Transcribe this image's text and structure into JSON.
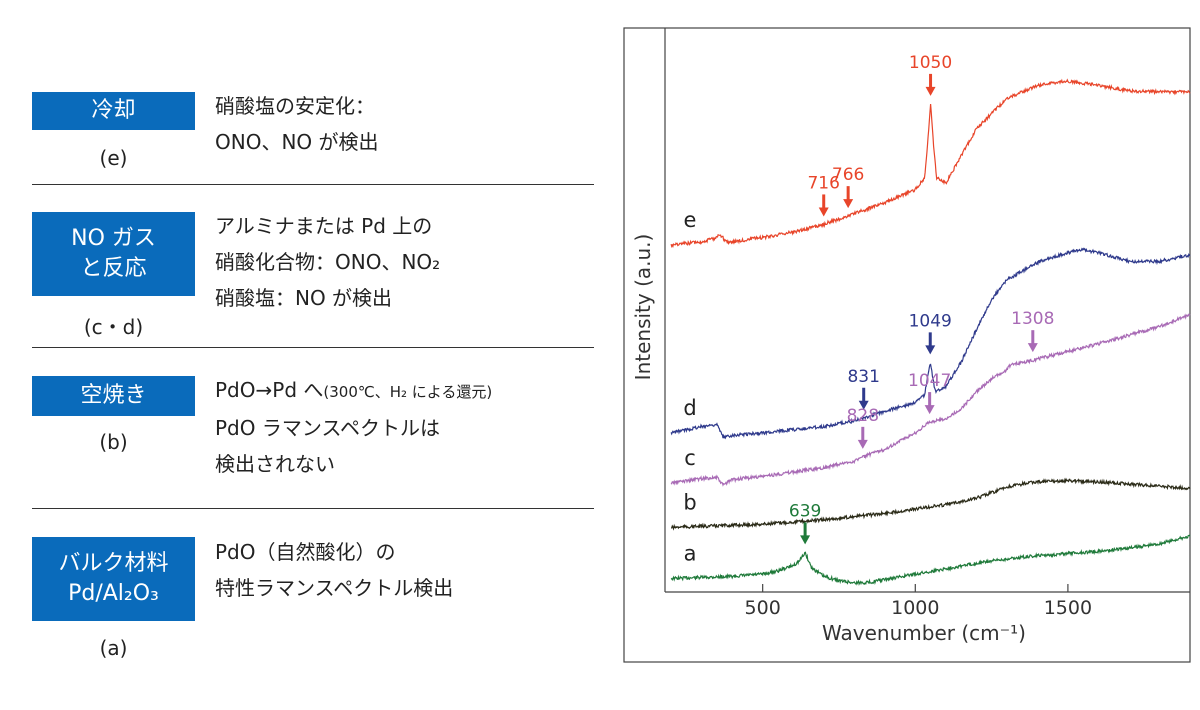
{
  "left_panel": {
    "rows": [
      {
        "badge": [
          "冷却"
        ],
        "sub": "(e)",
        "desc": [
          "硝酸塩の安定化：",
          "ONO、NO が検出"
        ]
      },
      {
        "badge": [
          "NO ガス",
          "と反応"
        ],
        "sub": "(c・d)",
        "desc": [
          "アルミナまたは Pd 上の",
          "硝酸化合物：ONO、NO₂",
          "硝酸塩：NO が検出"
        ]
      },
      {
        "badge": [
          "空焼き"
        ],
        "sub": "(b)",
        "desc_first": "PdO→Pd へ",
        "desc_first_small": "(300℃、H₂ による還元)",
        "desc": [
          "PdO ラマンスペクトルは",
          "検出されない"
        ]
      },
      {
        "badge": [
          "バルク材料",
          "Pd/Al₂O₃"
        ],
        "sub": "(a)",
        "desc": [
          "PdO（自然酸化）の",
          "特性ラマンスペクトル検出"
        ]
      }
    ]
  },
  "chart_data": {
    "type": "line",
    "xlabel": "Wavenumber (cm⁻¹)",
    "ylabel": "Intensity (a.u.)",
    "xlim": [
      180,
      1900
    ],
    "xticks": [
      500,
      1000,
      1500
    ],
    "yticks_shown": false,
    "grid": false,
    "series": [
      {
        "name": "a",
        "color": "#1f7a3a",
        "x": [
          200,
          300,
          400,
          500,
          550,
          600,
          620,
          639,
          660,
          700,
          750,
          800,
          850,
          900,
          1000,
          1100,
          1200,
          1300,
          1400,
          1500,
          1600,
          1700,
          1800,
          1900
        ],
        "y": [
          0.6,
          0.7,
          0.8,
          1.0,
          1.3,
          1.8,
          2.2,
          3.0,
          1.6,
          0.8,
          0.4,
          0.2,
          0.25,
          0.5,
          1.0,
          1.5,
          2.0,
          2.4,
          2.7,
          2.9,
          3.1,
          3.4,
          3.8,
          4.5
        ]
      },
      {
        "name": "b",
        "color": "#2b2b18",
        "x": [
          200,
          300,
          400,
          500,
          600,
          700,
          800,
          900,
          1000,
          1100,
          1200,
          1250,
          1300,
          1350,
          1400,
          1500,
          1600,
          1700,
          1800,
          1900
        ],
        "y": [
          5.3,
          5.4,
          5.5,
          5.6,
          5.8,
          6.0,
          6.3,
          6.6,
          7.0,
          7.4,
          8.0,
          8.5,
          9.0,
          9.3,
          9.5,
          9.6,
          9.5,
          9.3,
          9.1,
          8.9
        ]
      },
      {
        "name": "c",
        "color": "#a86ab5",
        "x": [
          200,
          300,
          350,
          370,
          400,
          500,
          600,
          700,
          800,
          828,
          900,
          1000,
          1047,
          1100,
          1150,
          1200,
          1250,
          1300,
          1308,
          1400,
          1500,
          1600,
          1700,
          1800,
          1900
        ],
        "y": [
          9.4,
          9.8,
          9.9,
          9.2,
          9.7,
          10.0,
          10.4,
          10.8,
          11.4,
          11.8,
          12.5,
          14.0,
          15.0,
          15.3,
          16.2,
          17.8,
          19.0,
          19.8,
          20.2,
          20.8,
          21.5,
          22.2,
          23.0,
          23.8,
          24.9
        ]
      },
      {
        "name": "d",
        "color": "#2f3a8c",
        "x": [
          200,
          300,
          350,
          370,
          400,
          500,
          600,
          700,
          800,
          831,
          900,
          1000,
          1030,
          1049,
          1065,
          1100,
          1150,
          1200,
          1250,
          1300,
          1400,
          1500,
          1550,
          1600,
          1700,
          1800,
          1900
        ],
        "y": [
          14.0,
          14.6,
          14.8,
          13.6,
          13.8,
          14.0,
          14.3,
          14.6,
          15.1,
          15.4,
          16.0,
          16.8,
          17.5,
          20.5,
          17.8,
          18.3,
          20.5,
          23.5,
          26.3,
          28.1,
          29.7,
          30.6,
          30.9,
          30.6,
          29.8,
          29.8,
          30.4
        ]
      },
      {
        "name": "e",
        "color": "#e8452a",
        "x": [
          200,
          300,
          340,
          360,
          380,
          400,
          500,
          600,
          700,
          716,
          766,
          800,
          900,
          1000,
          1030,
          1040,
          1050,
          1060,
          1070,
          1100,
          1150,
          1200,
          1300,
          1400,
          1500,
          1600,
          1700,
          1800,
          1900
        ],
        "y": [
          31.3,
          31.6,
          31.9,
          32.3,
          31.6,
          31.6,
          32.0,
          32.5,
          33.2,
          33.4,
          33.8,
          34.2,
          35.2,
          36.4,
          37.5,
          40.5,
          44.3,
          40.5,
          37.5,
          37.0,
          39.5,
          42.0,
          44.8,
          46.0,
          46.4,
          46.0,
          45.5,
          45.4,
          45.4
        ]
      }
    ],
    "trace_labels": [
      "e",
      "d",
      "c",
      "b",
      "a"
    ],
    "annotations": [
      {
        "text": "1050",
        "x": 1050,
        "series": "e",
        "color": "#e8452a"
      },
      {
        "text": "716",
        "x": 700,
        "series": "e",
        "color": "#e8452a"
      },
      {
        "text": "766",
        "x": 780,
        "series": "e",
        "color": "#e8452a"
      },
      {
        "text": "1049",
        "x": 1049,
        "series": "d",
        "color": "#2f3a8c"
      },
      {
        "text": "831",
        "x": 831,
        "series": "d",
        "color": "#2f3a8c"
      },
      {
        "text": "1308",
        "x": 1385,
        "series": "c",
        "color": "#a86ab5"
      },
      {
        "text": "1047",
        "x": 1047,
        "series": "c",
        "color": "#a86ab5"
      },
      {
        "text": "828",
        "x": 828,
        "series": "c",
        "color": "#a86ab5"
      },
      {
        "text": "639",
        "x": 639,
        "series": "a",
        "color": "#1f7a3a"
      }
    ]
  }
}
